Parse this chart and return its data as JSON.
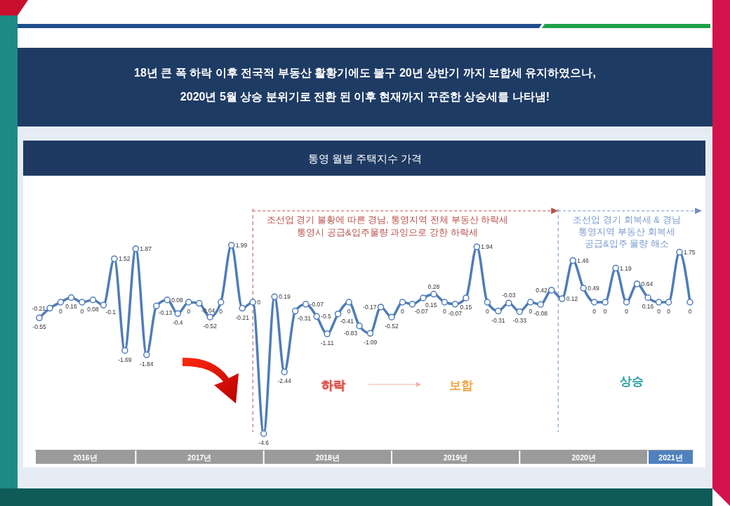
{
  "chart_data": {
    "type": "line",
    "title": "통영 월별 주택지수 가격",
    "subtitle": "18년 큰 폭 하락 이후 전국적 부동산 활황기에도 불구 20년 상반기 까지 보합세 유지하였으나,\n2020년 5월 상승 분위기로 전환 된 이후 현재까지 꾸준한 상승세를 나타냄!",
    "x": [
      "2016-04",
      "2016-05",
      "2016-06",
      "2016-07",
      "2016-08",
      "2016-09",
      "2016-10",
      "2016-11",
      "2016-12",
      "2017-01",
      "2017-02",
      "2017-03",
      "2017-04",
      "2017-05",
      "2017-06",
      "2017-07",
      "2017-08",
      "2017-09",
      "2017-10",
      "2017-11",
      "2017-12",
      "2018-01",
      "2018-02",
      "2018-03",
      "2018-04",
      "2018-05",
      "2018-06",
      "2018-07",
      "2018-08",
      "2018-09",
      "2018-10",
      "2018-11",
      "2018-12",
      "2019-01",
      "2019-02",
      "2019-03",
      "2019-04",
      "2019-05",
      "2019-06",
      "2019-07",
      "2019-08",
      "2019-09",
      "2019-10",
      "2019-11",
      "2019-12",
      "2020-01",
      "2020-02",
      "2020-03",
      "2020-04",
      "2020-05",
      "2020-06",
      "2020-07",
      "2020-08",
      "2020-09",
      "2020-10",
      "2020-11",
      "2020-12",
      "2021-01",
      "2021-02",
      "2021-03",
      "2021-04",
      "2021-05"
    ],
    "series": [
      {
        "color": "#4f7cb8",
        "values": [
          -0.55,
          -0.21,
          0,
          0.16,
          0,
          0.08,
          -0.1,
          1.52,
          -1.69,
          1.87,
          -1.84,
          -0.13,
          0.08,
          -0.4,
          0,
          -0.04,
          -0.52,
          0,
          1.99,
          -0.21,
          0,
          -4.6,
          0.19,
          -2.44,
          -0.31,
          -0.07,
          -0.5,
          -1.11,
          -0.41,
          0,
          -0.83,
          -1.09,
          -0.17,
          -0.52,
          0,
          -0.07,
          0.15,
          0.28,
          0,
          -0.07,
          0.15,
          1.94,
          0,
          -0.31,
          -0.03,
          -0.33,
          0,
          -0.08,
          0.42,
          0.12,
          1.46,
          0.49,
          0,
          0,
          1.19,
          0,
          0.64,
          0.16,
          0,
          0,
          1.75,
          0
        ]
      }
    ],
    "xlim": [
      "2016-03-20",
      "2021-05-11"
    ],
    "xticks": [
      {
        "value": "2016-08-10",
        "label": "2016년"
      },
      {
        "value": "2017-07-02",
        "label": "2017년"
      },
      {
        "value": "2018-07-02",
        "label": "2018년"
      },
      {
        "value": "2019-07-02",
        "label": "2019년"
      },
      {
        "value": "2020-07-02",
        "label": "2020년"
      },
      {
        "value": "2021-03-07",
        "label": "2021년"
      }
    ],
    "tick_labels": "x",
    "marker": "circle",
    "data_labels": true,
    "ref_lines": [
      {
        "axis": "x",
        "value": "2017-12",
        "color": "#b8504a",
        "line_style": "dashed"
      },
      {
        "axis": "x",
        "value": "2020-04-20",
        "color": "#6f8fc6",
        "line_style": "dashed"
      }
    ],
    "annotations": [
      "조선업 경기 불황에 따른 경남, 통영지역 전체 부동산 하락세\n통영시 공급&입주물량 과잉으로 강한 하락세",
      "조선업 경기 회복세 & 경남\n통영지역 부동산 회복세\n공급&입주 물량 해소",
      "하락",
      "보합",
      "상승"
    ]
  }
}
